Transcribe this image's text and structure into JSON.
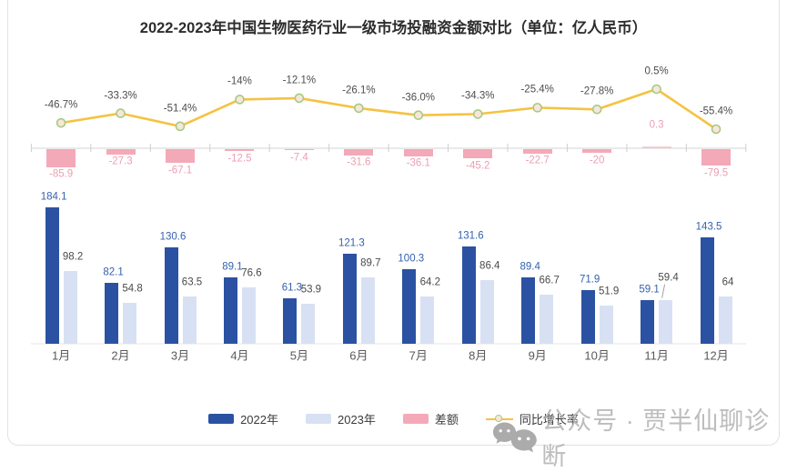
{
  "title": "2022-2023年中国生物医药行业一级市场投融资金额对比（单位：亿人民币）",
  "watermark": {
    "text": "公众号 · 贾半仙聊诊断",
    "icon": "chat-bubbles-icon"
  },
  "legend": {
    "items": [
      {
        "label": "2022年",
        "marker": "bar",
        "color": "#2B52A2"
      },
      {
        "label": "2023年",
        "marker": "bar",
        "color": "#D8E1F3"
      },
      {
        "label": "差额",
        "marker": "bar",
        "color": "#F4A9B8"
      },
      {
        "label": "同比增长率",
        "marker": "line",
        "color": "#F5C242"
      }
    ]
  },
  "chart_data": {
    "type": "bar",
    "subtype": "grouped bars + difference bars + yoy growth line",
    "title": "2022-2023年中国生物医药行业一级市场投融资金额对比（单位：亿人民币）",
    "unit": "亿人民币",
    "categories": [
      "1月",
      "2月",
      "3月",
      "4月",
      "5月",
      "6月",
      "7月",
      "8月",
      "9月",
      "10月",
      "11月",
      "12月"
    ],
    "series": [
      {
        "name": "2022年",
        "type": "bar",
        "color": "#2B52A2",
        "label_color": "#3461AE",
        "values": [
          184.1,
          82.1,
          130.6,
          89.1,
          61.3,
          121.3,
          100.3,
          131.6,
          89.4,
          71.9,
          59.1,
          143.5
        ]
      },
      {
        "name": "2023年",
        "type": "bar",
        "color": "#D8E1F3",
        "label_color": "#4a4a4a",
        "values": [
          98.2,
          54.8,
          63.5,
          76.6,
          53.9,
          89.7,
          64.2,
          86.4,
          66.7,
          51.9,
          59.4,
          64
        ]
      },
      {
        "name": "差额",
        "type": "bar",
        "color": "#F4A9B8",
        "label_color": "#EC9FB0",
        "values": [
          -85.9,
          -27.3,
          -67.1,
          -12.5,
          -7.4,
          -31.6,
          -36.1,
          -45.2,
          -22.7,
          -20,
          0.3,
          -79.5
        ]
      },
      {
        "name": "同比增长率",
        "type": "line",
        "color": "#F5C242",
        "label_color": "#4d4d4d",
        "values": [
          -46.7,
          -33.3,
          -51.4,
          -14,
          -12.1,
          -26.1,
          -36.0,
          -34.3,
          -25.4,
          -27.8,
          0.5,
          -55.4
        ],
        "labels": [
          "-46.7%",
          "-33.3%",
          "-51.4%",
          "-14%",
          "-12.1%",
          "-26.1%",
          "-36.0%",
          "-34.3%",
          "-25.4%",
          "-27.8%",
          "0.5%",
          "-55.4%"
        ]
      }
    ],
    "marker_style": {
      "stroke": "#A6CB80",
      "fill": "#F8E6DC"
    },
    "legend_position": "bottom",
    "grid": false
  }
}
